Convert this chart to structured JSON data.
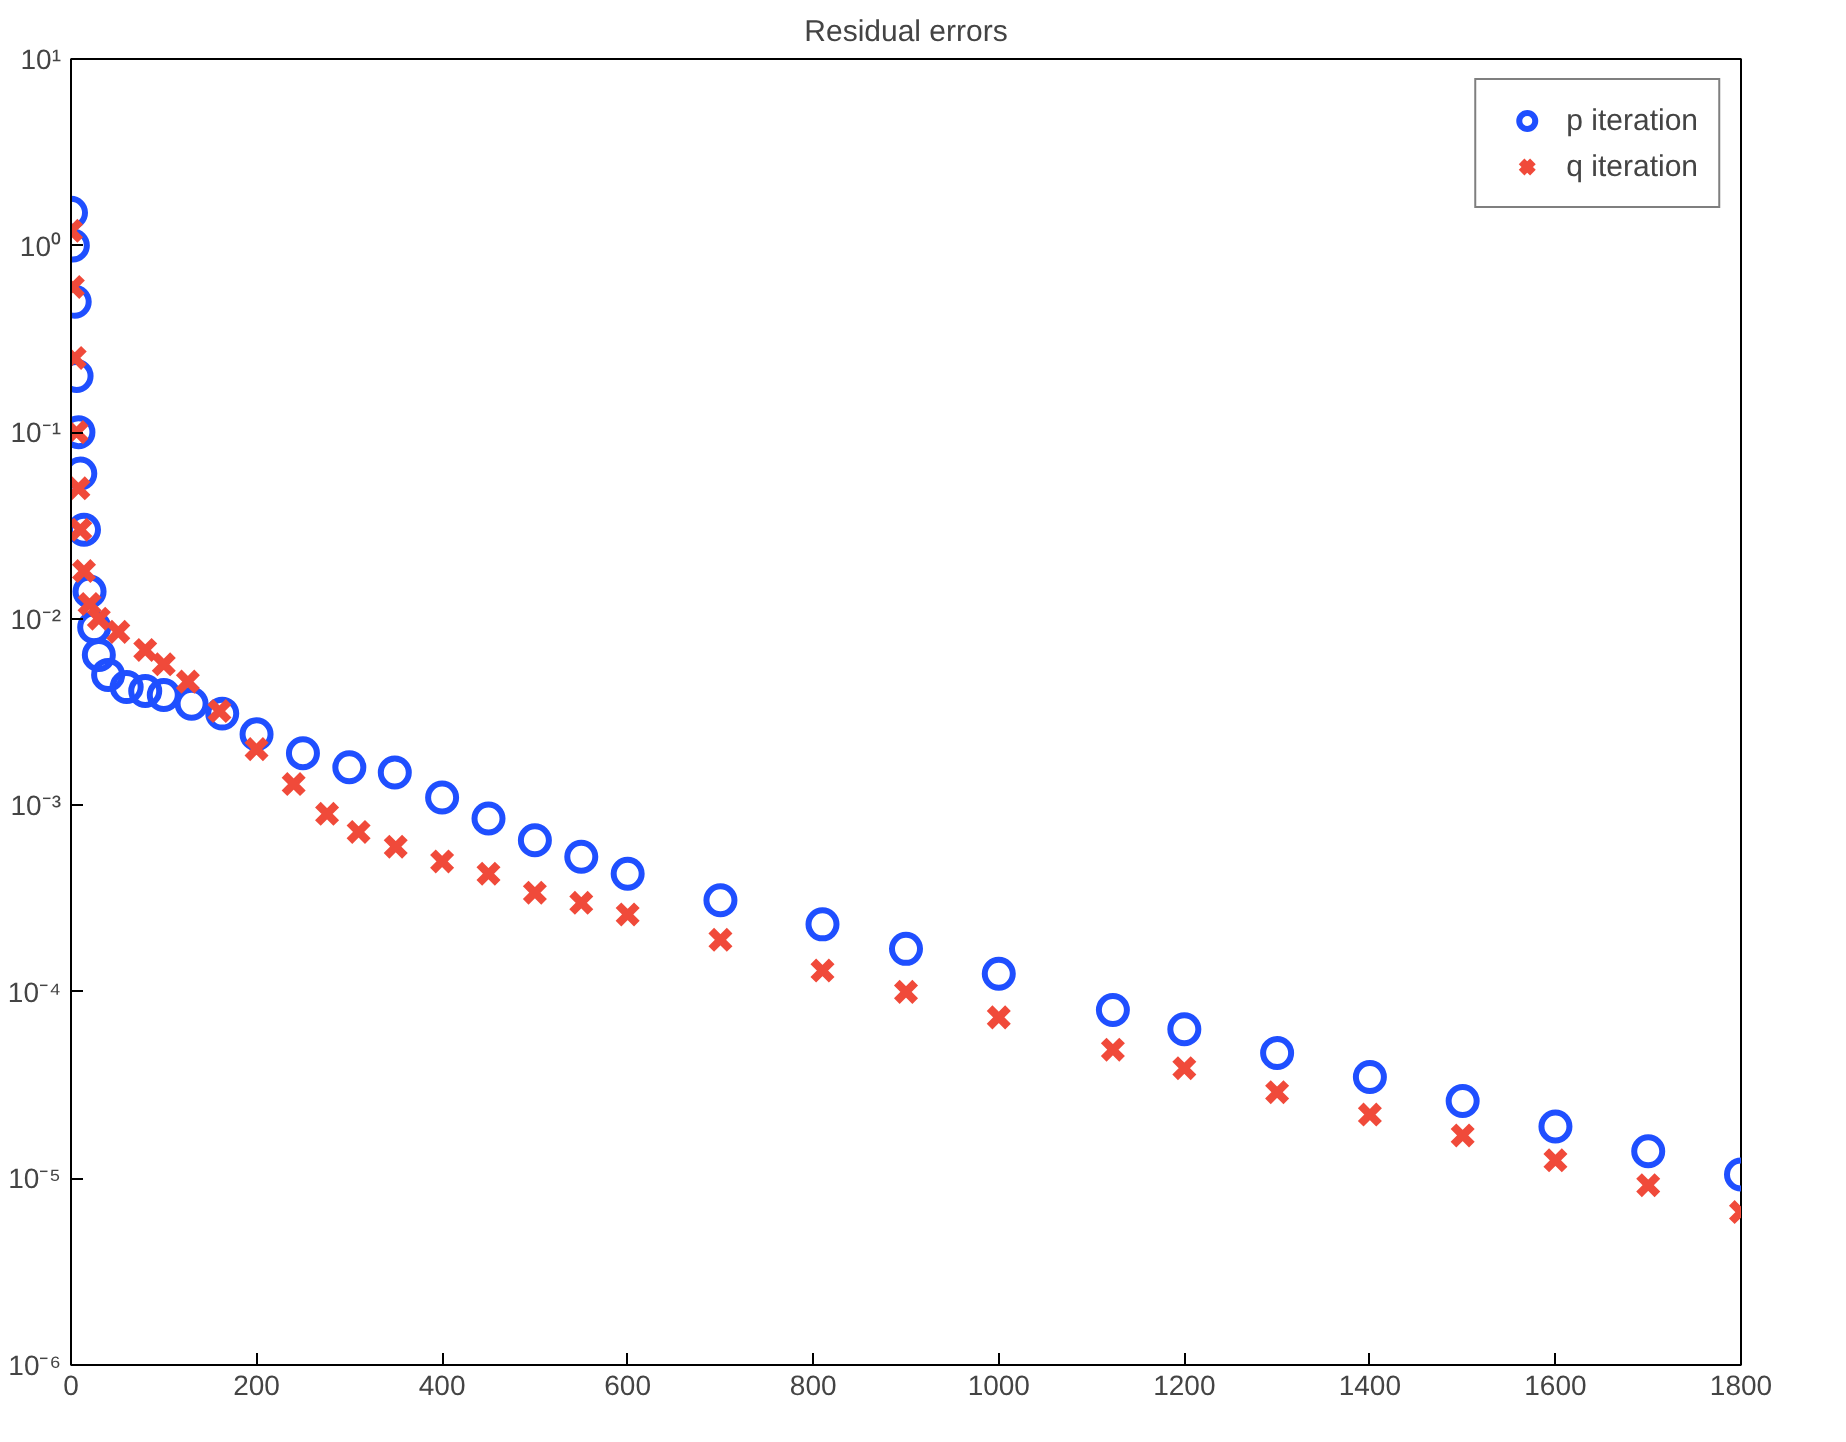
{
  "chart_data": {
    "type": "scatter",
    "title": "Residual errors",
    "log": "y",
    "legend": "top right",
    "grid": false,
    "xlim": [
      0,
      1800
    ],
    "xticks": [
      0,
      200,
      400,
      600,
      800,
      1000,
      1200,
      1400,
      1600,
      1800
    ],
    "ylim": [
      1e-06,
      10
    ],
    "yticks": [
      {
        "value": 1e-06,
        "label": "10⁻⁶"
      },
      {
        "value": 1e-05,
        "label": "10⁻⁵"
      },
      {
        "value": 0.0001,
        "label": "10⁻⁴"
      },
      {
        "value": 0.001,
        "label": "10⁻³"
      },
      {
        "value": 0.01,
        "label": "10⁻²"
      },
      {
        "value": 0.1,
        "label": "10⁻¹"
      },
      {
        "value": 1,
        "label": "10⁰"
      },
      {
        "value": 10,
        "label": "10¹"
      }
    ],
    "series": [
      {
        "name": "p iteration",
        "color": "#1f4fff",
        "marker": "circle",
        "x": [
          0,
          2,
          4,
          6,
          8,
          10,
          14,
          20,
          25,
          30,
          40,
          60,
          80,
          100,
          130,
          163,
          200,
          250,
          300,
          349,
          400,
          450,
          500,
          550,
          600,
          700,
          810,
          900,
          1000,
          1123,
          1200,
          1300,
          1400,
          1500,
          1600,
          1700,
          1800
        ],
        "values": [
          1.5,
          1.0,
          0.5,
          0.2,
          0.1,
          0.06,
          0.03,
          0.014,
          0.009,
          0.0064,
          0.005,
          0.0043,
          0.0041,
          0.0039,
          0.0035,
          0.0031,
          0.0024,
          0.0019,
          0.0016,
          0.0015,
          0.0011,
          0.00085,
          0.00065,
          0.00053,
          0.00043,
          0.00031,
          0.00023,
          0.00017,
          0.000125,
          8e-05,
          6.3e-05,
          4.7e-05,
          3.5e-05,
          2.6e-05,
          1.9e-05,
          1.4e-05,
          1.05e-05
        ]
      },
      {
        "name": "q iteration",
        "color": "#f04a3a",
        "marker": "cross",
        "x": [
          0,
          2,
          4,
          6,
          8,
          10,
          14,
          20,
          30,
          51,
          80,
          100,
          126,
          160,
          200,
          240,
          276,
          310,
          350,
          400,
          450,
          500,
          550,
          600,
          700,
          810,
          900,
          1000,
          1123,
          1200,
          1300,
          1400,
          1500,
          1600,
          1700,
          1800
        ],
        "values": [
          1.2,
          0.6,
          0.25,
          0.1,
          0.05,
          0.03,
          0.018,
          0.012,
          0.01,
          0.0085,
          0.0068,
          0.0057,
          0.0046,
          0.0032,
          0.002,
          0.0013,
          0.0009,
          0.00072,
          0.0006,
          0.0005,
          0.00043,
          0.00034,
          0.0003,
          0.00026,
          0.00019,
          0.00013,
          0.0001,
          7.3e-05,
          4.9e-05,
          3.9e-05,
          2.9e-05,
          2.2e-05,
          1.7e-05,
          1.25e-05,
          9.2e-06,
          6.6e-06
        ]
      }
    ]
  }
}
